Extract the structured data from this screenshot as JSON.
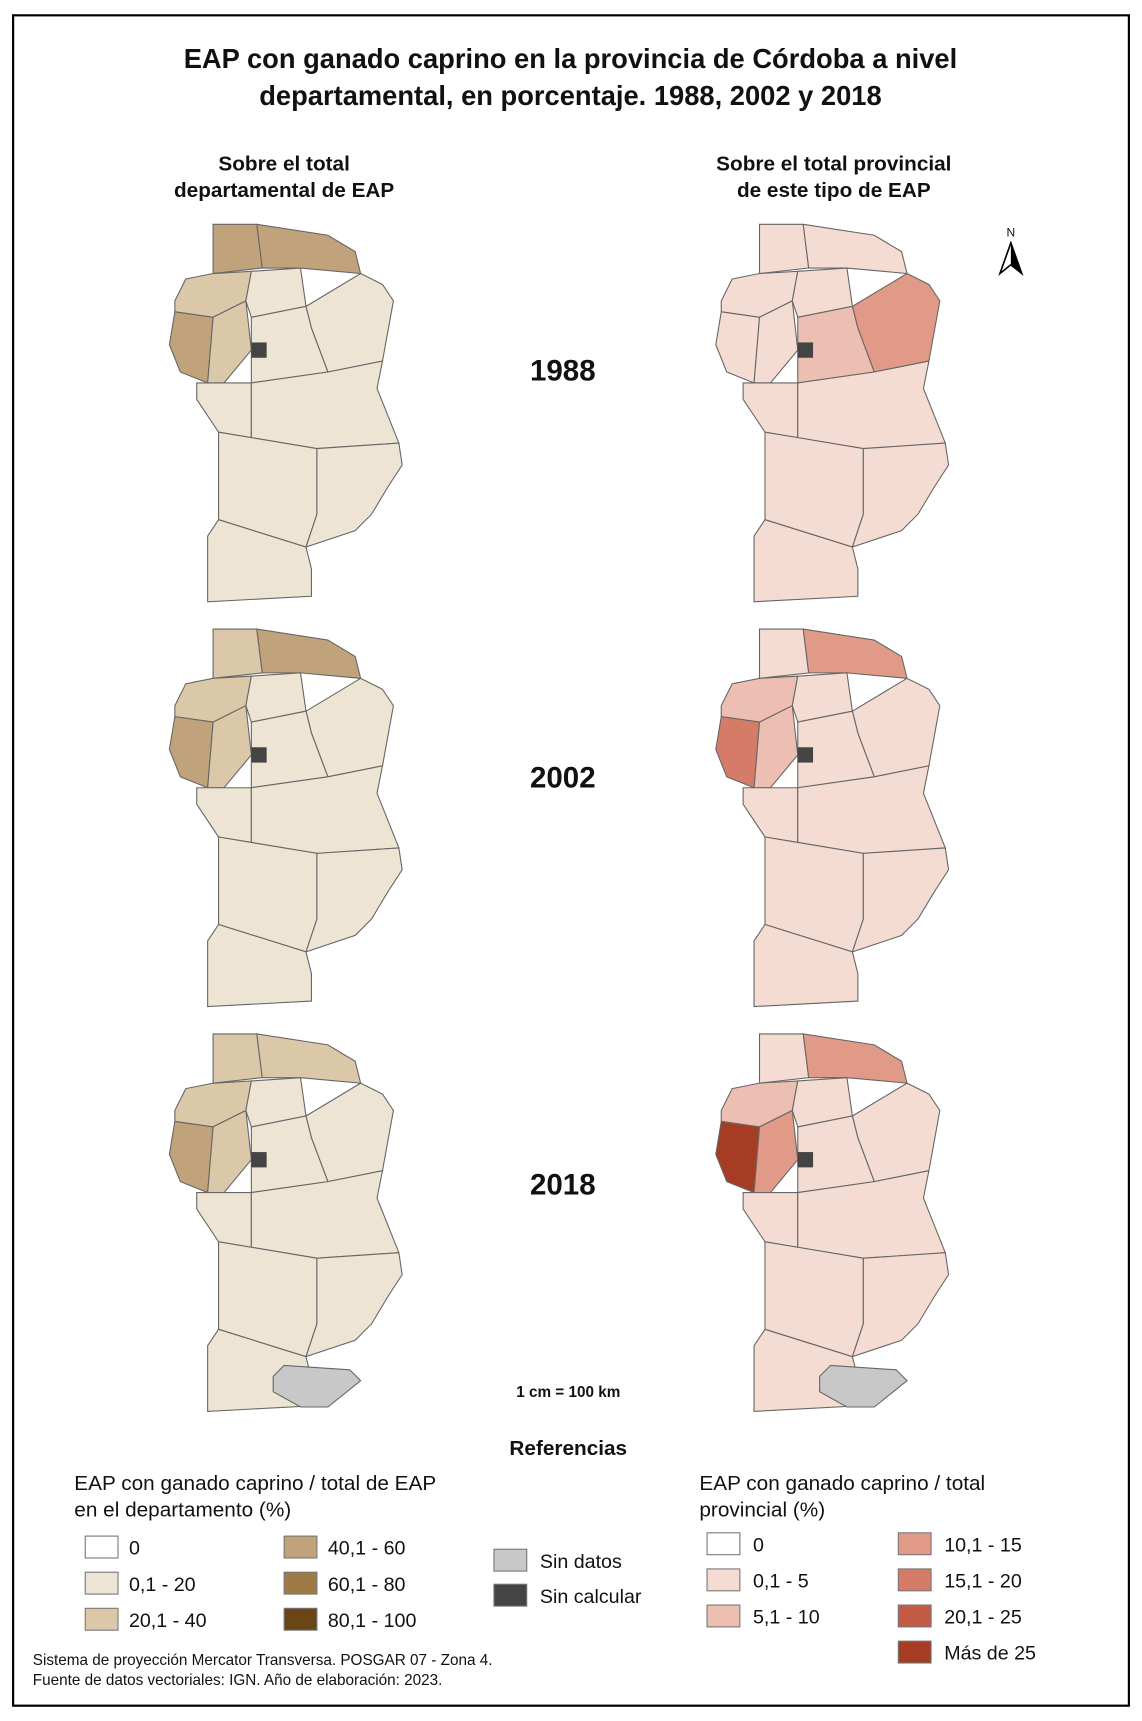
{
  "title": [
    "EAP con ganado caprino en la provincia de Córdoba a nivel",
    "departamental, en porcentaje. 1988, 2002 y 2018"
  ],
  "columns": [
    [
      "Sobre el total",
      "departamental de EAP"
    ],
    [
      "Sobre el total provincial",
      "de este tipo de EAP"
    ]
  ],
  "years": [
    "1988",
    "2002",
    "2018"
  ],
  "north": "N",
  "scale": "1 cm = 100 km",
  "references": "Referencias",
  "legend_left": {
    "title": [
      "EAP con ganado caprino / total de EAP",
      "en el departamento (%)"
    ],
    "items": [
      "0",
      "0,1 - 20",
      "20,1 - 40",
      "40,1 - 60",
      "60,1 - 80",
      "80,1 - 100"
    ]
  },
  "legend_mid": {
    "items": [
      "Sin datos",
      "Sin calcular"
    ]
  },
  "legend_right": {
    "title": [
      "EAP con ganado caprino / total",
      "provincial (%)"
    ],
    "items": [
      "0",
      "0,1 - 5",
      "5,1 - 10",
      "10,1 - 15",
      "15,1 - 20",
      "20,1 - 25",
      "Más de 25"
    ]
  },
  "footer": [
    "Sistema de proyección Mercator Transversa. POSGAR 07 - Zona 4.",
    "Fuente de datos vectoriales: IGN. Año de elaboración: 2023."
  ]
}
